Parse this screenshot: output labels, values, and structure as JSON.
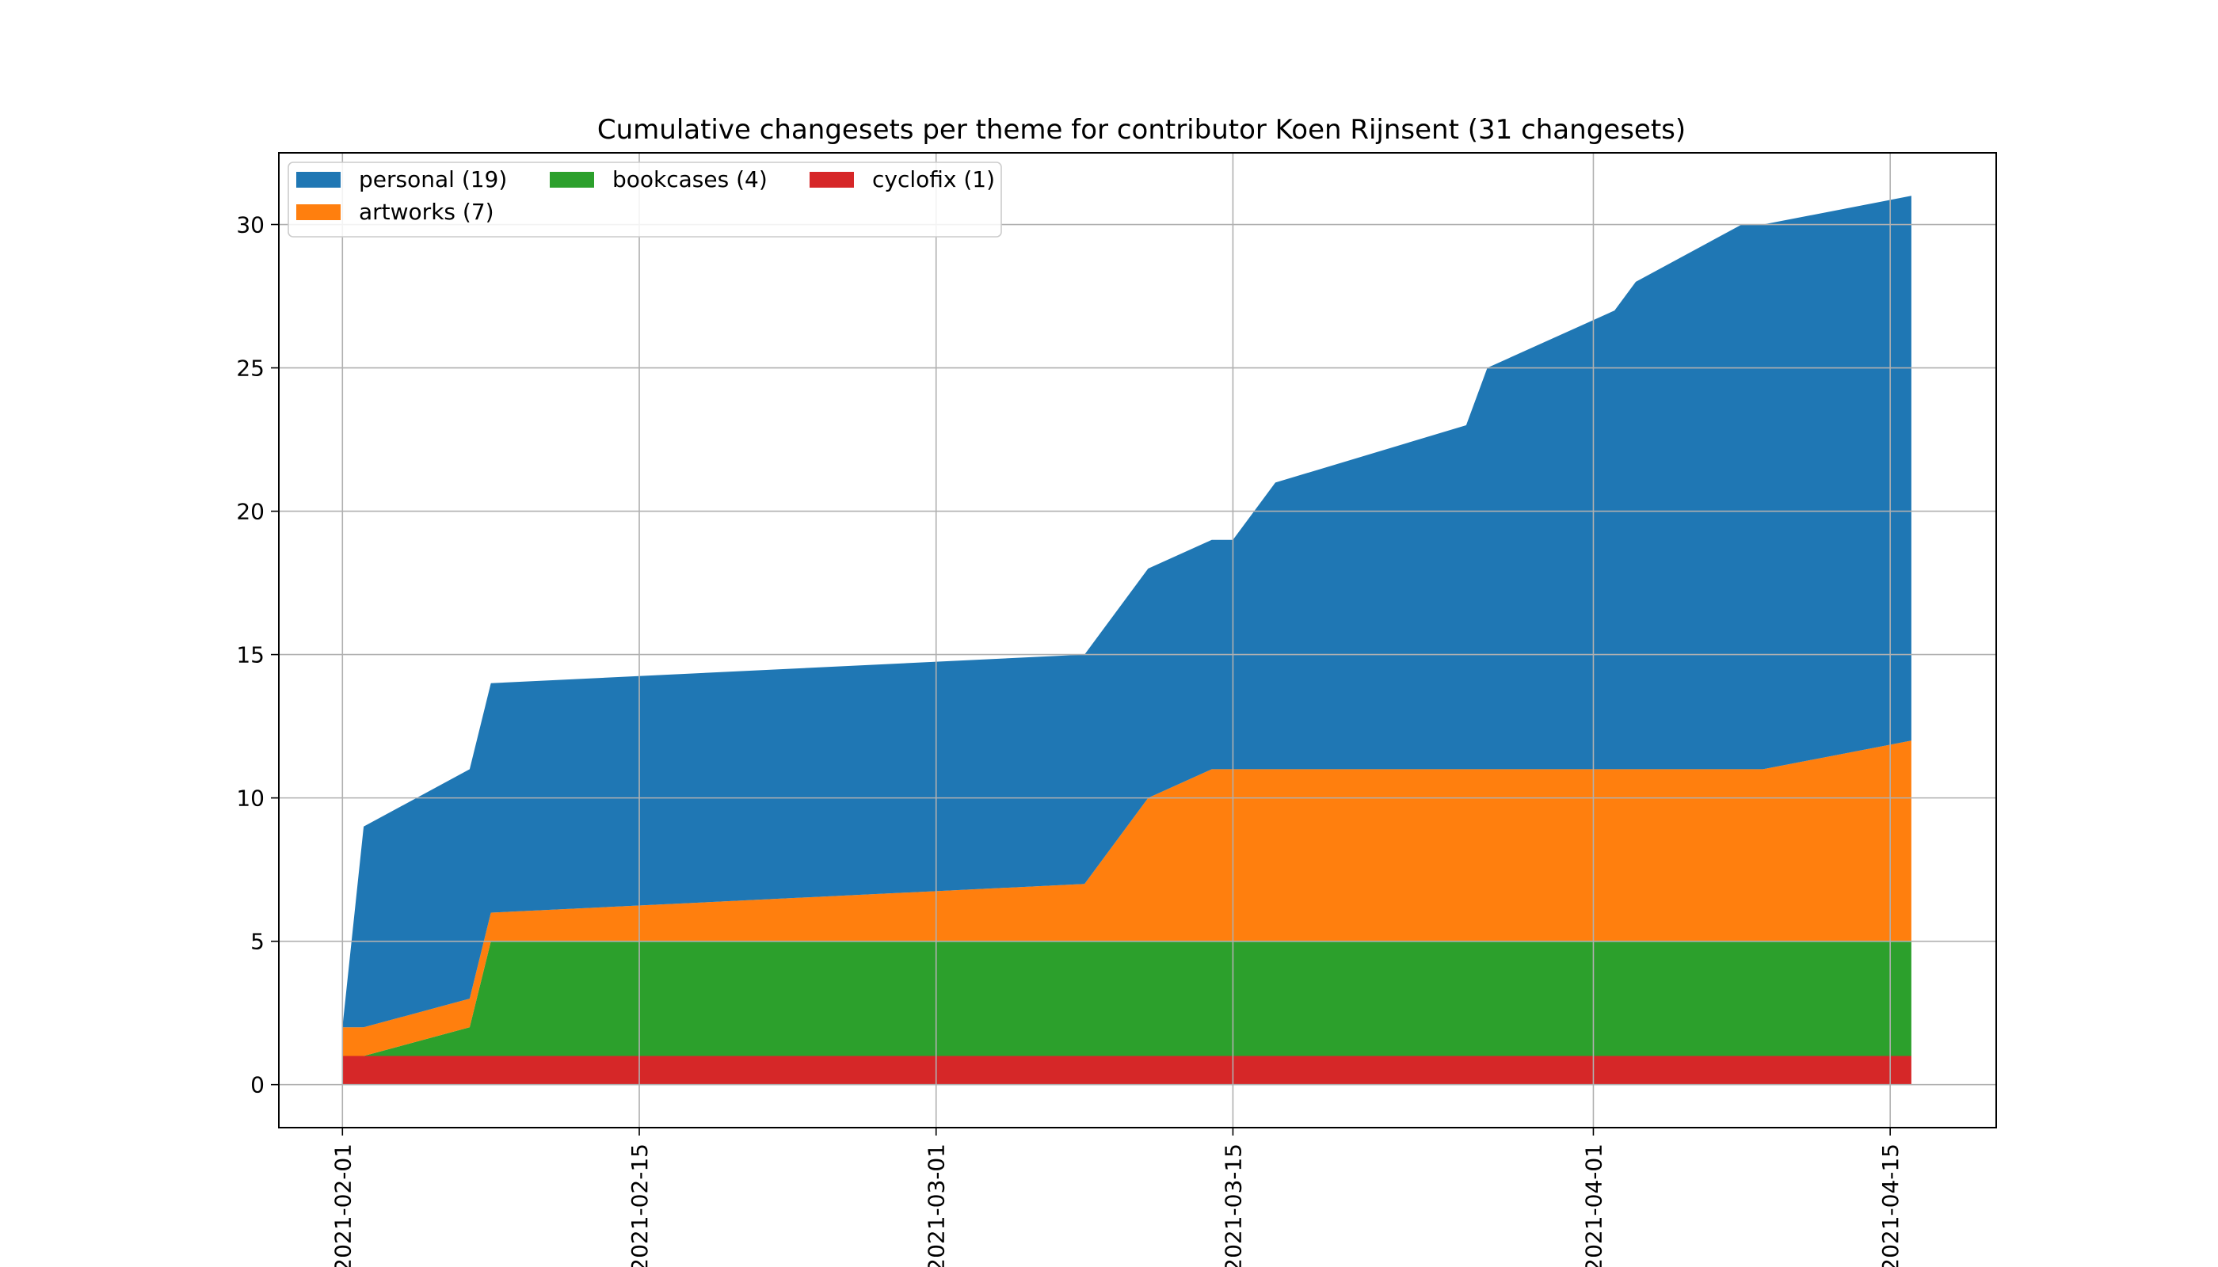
{
  "chart_data": {
    "type": "area",
    "stacked": true,
    "title": "Cumulative changesets per theme for contributor Koen Rijnsent (31 changesets)",
    "xlabel": "",
    "ylabel": "",
    "x_axis_type": "date",
    "xlim": [
      "2021-01-29",
      "2021-04-20"
    ],
    "ylim": [
      -1.5,
      32.5
    ],
    "x_ticks": [
      "2021-02-01",
      "2021-02-15",
      "2021-03-01",
      "2021-03-15",
      "2021-04-01",
      "2021-04-15"
    ],
    "y_ticks": [
      0,
      5,
      10,
      15,
      20,
      25,
      30
    ],
    "grid": true,
    "legend_position": "top-left",
    "legend_columns": 3,
    "x": [
      "2021-02-01",
      "2021-02-02",
      "2021-02-07",
      "2021-02-08",
      "2021-03-08",
      "2021-03-11",
      "2021-03-14",
      "2021-03-15",
      "2021-03-17",
      "2021-03-26",
      "2021-03-27",
      "2021-04-02",
      "2021-04-03",
      "2021-04-08",
      "2021-04-09",
      "2021-04-16"
    ],
    "series": [
      {
        "name": "cyclofix (1)",
        "color": "#d62728",
        "values": [
          1,
          1,
          1,
          1,
          1,
          1,
          1,
          1,
          1,
          1,
          1,
          1,
          1,
          1,
          1,
          1
        ]
      },
      {
        "name": "bookcases (4)",
        "color": "#2ca02c",
        "values": [
          0,
          0,
          1,
          4,
          4,
          4,
          4,
          4,
          4,
          4,
          4,
          4,
          4,
          4,
          4,
          4
        ]
      },
      {
        "name": "artworks (7)",
        "color": "#ff7f0e",
        "values": [
          1,
          1,
          1,
          1,
          2,
          5,
          6,
          6,
          6,
          6,
          6,
          6,
          6,
          6,
          6,
          7
        ]
      },
      {
        "name": "personal (19)",
        "color": "#1f77b4",
        "values": [
          0,
          7,
          8,
          8,
          8,
          8,
          8,
          8,
          10,
          12,
          14,
          16,
          17,
          19,
          19,
          19
        ]
      }
    ],
    "legend_order": [
      "personal (19)",
      "bookcases (4)",
      "cyclofix (1)",
      "artworks (7)"
    ]
  }
}
